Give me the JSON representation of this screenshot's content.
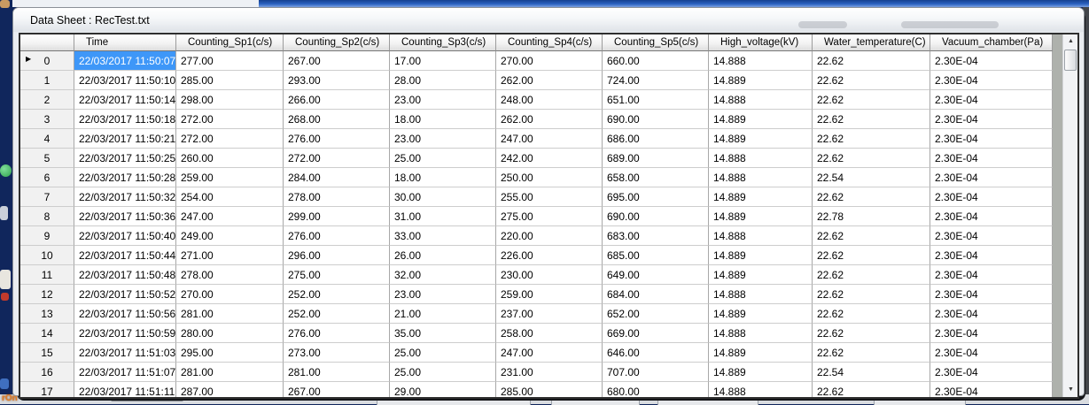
{
  "window": {
    "title": "Data Sheet : RecTest.txt"
  },
  "icons": {
    "current_row": "▶",
    "scroll_up": "▲",
    "scroll_down": "▼"
  },
  "colors": {
    "selection_background": "#3E97F8",
    "selection_text": "#FFFFFF",
    "grid_header_text": "#000000",
    "titlebar_accent_blue": "#2A62C0"
  },
  "background": {
    "bottom_corner_text": "rOn"
  },
  "grid": {
    "columns": [
      "",
      "Time",
      "Counting_Sp1(c/s)",
      "Counting_Sp2(c/s)",
      "Counting_Sp3(c/s)",
      "Counting_Sp4(c/s)",
      "Counting_Sp5(c/s)",
      "High_voltage(kV)",
      "Water_temperature(C)",
      "Vacuum_chamber(Pa)"
    ],
    "selected_cell": {
      "row": 0,
      "column": "Time"
    },
    "rows": [
      {
        "index": "0",
        "cells": [
          "22/03/2017 11:50:07",
          "277.00",
          "267.00",
          "17.00",
          "270.00",
          "660.00",
          "14.888",
          "22.62",
          "2.30E-04"
        ]
      },
      {
        "index": "1",
        "cells": [
          "22/03/2017 11:50:10",
          "285.00",
          "293.00",
          "28.00",
          "262.00",
          "724.00",
          "14.889",
          "22.62",
          "2.30E-04"
        ]
      },
      {
        "index": "2",
        "cells": [
          "22/03/2017 11:50:14",
          "298.00",
          "266.00",
          "23.00",
          "248.00",
          "651.00",
          "14.888",
          "22.62",
          "2.30E-04"
        ]
      },
      {
        "index": "3",
        "cells": [
          "22/03/2017 11:50:18",
          "272.00",
          "268.00",
          "18.00",
          "262.00",
          "690.00",
          "14.889",
          "22.62",
          "2.30E-04"
        ]
      },
      {
        "index": "4",
        "cells": [
          "22/03/2017 11:50:21",
          "272.00",
          "276.00",
          "23.00",
          "247.00",
          "686.00",
          "14.889",
          "22.62",
          "2.30E-04"
        ]
      },
      {
        "index": "5",
        "cells": [
          "22/03/2017 11:50:25",
          "260.00",
          "272.00",
          "25.00",
          "242.00",
          "689.00",
          "14.888",
          "22.62",
          "2.30E-04"
        ]
      },
      {
        "index": "6",
        "cells": [
          "22/03/2017 11:50:28",
          "259.00",
          "284.00",
          "18.00",
          "250.00",
          "658.00",
          "14.888",
          "22.54",
          "2.30E-04"
        ]
      },
      {
        "index": "7",
        "cells": [
          "22/03/2017 11:50:32",
          "254.00",
          "278.00",
          "30.00",
          "255.00",
          "695.00",
          "14.889",
          "22.62",
          "2.30E-04"
        ]
      },
      {
        "index": "8",
        "cells": [
          "22/03/2017 11:50:36",
          "247.00",
          "299.00",
          "31.00",
          "275.00",
          "690.00",
          "14.889",
          "22.78",
          "2.30E-04"
        ]
      },
      {
        "index": "9",
        "cells": [
          "22/03/2017 11:50:40",
          "249.00",
          "276.00",
          "33.00",
          "220.00",
          "683.00",
          "14.888",
          "22.62",
          "2.30E-04"
        ]
      },
      {
        "index": "10",
        "cells": [
          "22/03/2017 11:50:44",
          "271.00",
          "296.00",
          "26.00",
          "226.00",
          "685.00",
          "14.889",
          "22.62",
          "2.30E-04"
        ]
      },
      {
        "index": "11",
        "cells": [
          "22/03/2017 11:50:48",
          "278.00",
          "275.00",
          "32.00",
          "230.00",
          "649.00",
          "14.889",
          "22.62",
          "2.30E-04"
        ]
      },
      {
        "index": "12",
        "cells": [
          "22/03/2017 11:50:52",
          "270.00",
          "252.00",
          "23.00",
          "259.00",
          "684.00",
          "14.888",
          "22.62",
          "2.30E-04"
        ]
      },
      {
        "index": "13",
        "cells": [
          "22/03/2017 11:50:56",
          "281.00",
          "252.00",
          "21.00",
          "237.00",
          "652.00",
          "14.889",
          "22.62",
          "2.30E-04"
        ]
      },
      {
        "index": "14",
        "cells": [
          "22/03/2017 11:50:59",
          "280.00",
          "276.00",
          "35.00",
          "258.00",
          "669.00",
          "14.888",
          "22.62",
          "2.30E-04"
        ]
      },
      {
        "index": "15",
        "cells": [
          "22/03/2017 11:51:03",
          "295.00",
          "273.00",
          "25.00",
          "247.00",
          "646.00",
          "14.889",
          "22.62",
          "2.30E-04"
        ]
      },
      {
        "index": "16",
        "cells": [
          "22/03/2017 11:51:07",
          "281.00",
          "281.00",
          "25.00",
          "231.00",
          "707.00",
          "14.889",
          "22.54",
          "2.30E-04"
        ]
      },
      {
        "index": "17",
        "cells": [
          "22/03/2017 11:51:11",
          "287.00",
          "267.00",
          "29.00",
          "285.00",
          "680.00",
          "14.888",
          "22.62",
          "2.30E-04"
        ]
      }
    ]
  }
}
